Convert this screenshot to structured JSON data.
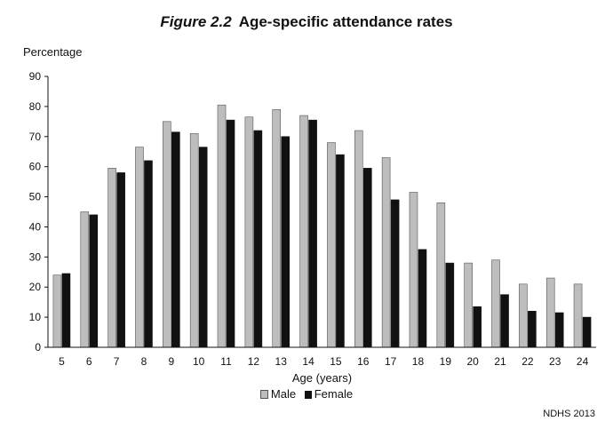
{
  "header": {
    "figure_label": "Figure 2.2",
    "title_text": "Age-specific attendance rates"
  },
  "source_note": "NDHS 2013",
  "chart_data": {
    "type": "bar",
    "title": "Figure 2.2 Age-specific attendance rates",
    "ylabel": "Percentage",
    "xlabel": "Age (years)",
    "ylim": [
      0,
      90
    ],
    "yticks": [
      0,
      10,
      20,
      30,
      40,
      50,
      60,
      70,
      80,
      90
    ],
    "grid": false,
    "legend_position": "bottom",
    "categories": [
      "5",
      "6",
      "7",
      "8",
      "9",
      "10",
      "11",
      "12",
      "13",
      "14",
      "15",
      "16",
      "17",
      "18",
      "19",
      "20",
      "21",
      "22",
      "23",
      "24"
    ],
    "series": [
      {
        "name": "Male",
        "color": "#bdbdbd",
        "values": [
          24,
          45,
          59.5,
          66.5,
          75,
          71,
          80.5,
          76.5,
          79,
          77,
          68,
          72,
          63,
          51.5,
          48,
          28,
          29,
          21,
          23,
          21
        ]
      },
      {
        "name": "Female",
        "color": "#111111",
        "values": [
          24.5,
          44,
          58,
          62,
          71.5,
          66.5,
          75.5,
          72,
          70,
          75.5,
          64,
          59.5,
          49,
          32.5,
          28,
          13.5,
          17.5,
          12,
          11.5,
          10
        ]
      }
    ]
  }
}
